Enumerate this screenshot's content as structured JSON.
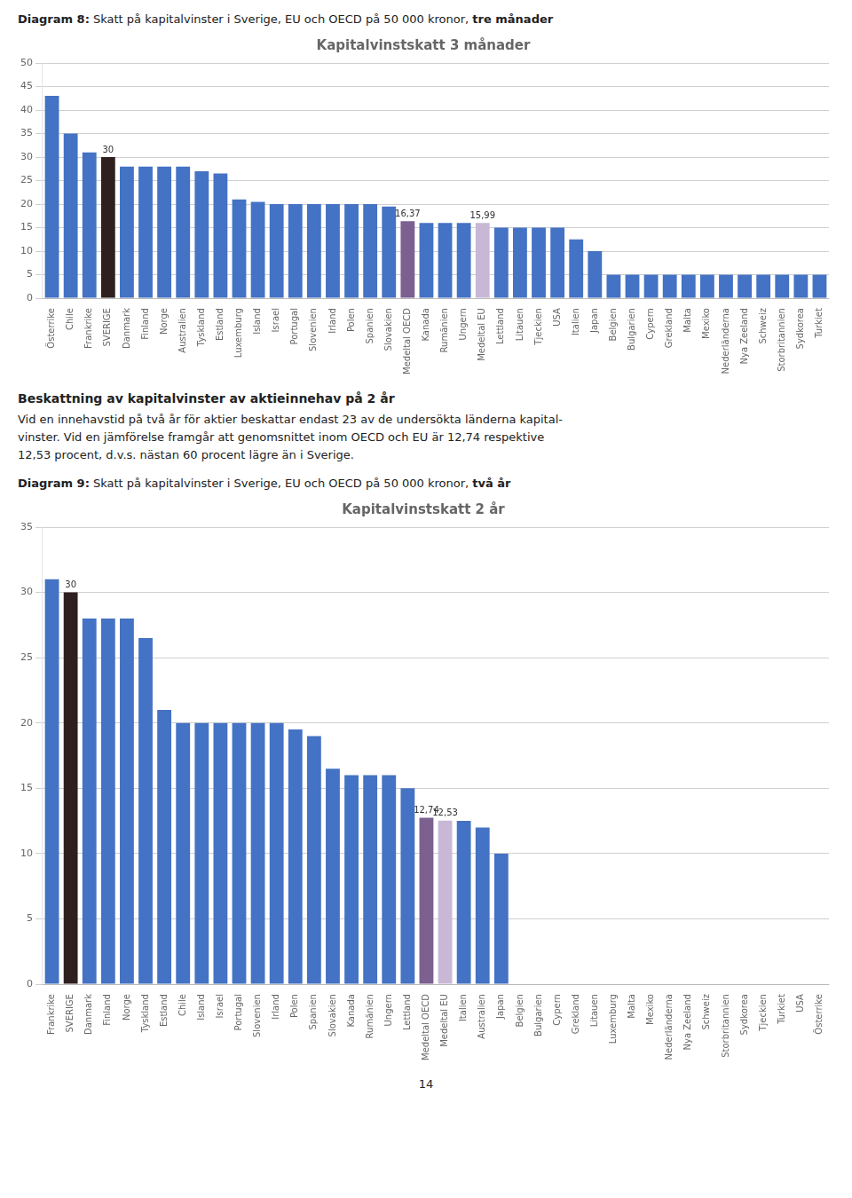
{
  "chart_data": [
    {
      "type": "bar",
      "title": "Kapitalvinstskatt 3 månader",
      "caption": [
        "Diagram 8:",
        " Skatt på kapitalvinster i Sverige, EU och OECD på 50 000 kronor, ",
        "tre månader"
      ],
      "categories": [
        "Österrike",
        "Chile",
        "Frankrike",
        "SVERIGE",
        "Danmark",
        "Finland",
        "Norge",
        "Australien",
        "Tyskland",
        "Estland",
        "Luxemburg",
        "Island",
        "Israel",
        "Portugal",
        "Slovenien",
        "Irland",
        "Polen",
        "Spanien",
        "Slovakien",
        "Medeltal OECD",
        "Kanada",
        "Rumänien",
        "Ungern",
        "Medeltal EU",
        "Lettland",
        "Litauen",
        "Tjeckien",
        "USA",
        "Italien",
        "Japan",
        "Belgien",
        "Bulgarien",
        "Cypern",
        "Grekland",
        "Malta",
        "Mexiko",
        "Nederländerna",
        "Nya Zeeland",
        "Schweiz",
        "Storbritannien",
        "Sydkorea",
        "Turkiet"
      ],
      "values": [
        43,
        35,
        31,
        30,
        28,
        28,
        28,
        28,
        27,
        26.5,
        21,
        20.5,
        20,
        20,
        20,
        20,
        20,
        20,
        19.5,
        16.37,
        16,
        16,
        16,
        15.99,
        15,
        15,
        15,
        15,
        12.5,
        10,
        5,
        5,
        5,
        5,
        5,
        5,
        5,
        5,
        5,
        5,
        5,
        5
      ],
      "value_labels": [
        null,
        null,
        null,
        "30",
        null,
        null,
        null,
        null,
        null,
        null,
        null,
        null,
        null,
        null,
        null,
        null,
        null,
        null,
        null,
        "16,37",
        null,
        null,
        null,
        "15,99",
        null,
        null,
        null,
        null,
        null,
        null,
        null,
        null,
        null,
        null,
        null,
        null,
        null,
        null,
        null,
        null,
        null,
        null
      ],
      "colors": [
        "#4472C4",
        "#4472C4",
        "#4472C4",
        "#2F2020",
        "#4472C4",
        "#4472C4",
        "#4472C4",
        "#4472C4",
        "#4472C4",
        "#4472C4",
        "#4472C4",
        "#4472C4",
        "#4472C4",
        "#4472C4",
        "#4472C4",
        "#4472C4",
        "#4472C4",
        "#4472C4",
        "#4472C4",
        "#7B6090",
        "#4472C4",
        "#4472C4",
        "#4472C4",
        "#C8B8D5",
        "#4472C4",
        "#4472C4",
        "#4472C4",
        "#4472C4",
        "#4472C4",
        "#4472C4",
        "#4472C4",
        "#4472C4",
        "#4472C4",
        "#4472C4",
        "#4472C4",
        "#4472C4",
        "#4472C4",
        "#4472C4",
        "#4472C4",
        "#4472C4",
        "#4472C4",
        "#4472C4"
      ],
      "ylim": [
        0,
        50
      ],
      "yticks": [
        0,
        5,
        10,
        15,
        20,
        25,
        30,
        35,
        40,
        45,
        50
      ],
      "grid": true
    },
    {
      "type": "bar",
      "title": "Kapitalvinstskatt 2 år",
      "caption": [
        "Diagram 9:",
        " Skatt på kapitalvinster i Sverige, EU och OECD på 50 000 kronor, ",
        "två år"
      ],
      "categories": [
        "Frankrike",
        "SVERIGE",
        "Danmark",
        "Finland",
        "Norge",
        "Tyskland",
        "Estland",
        "Chile",
        "Island",
        "Israel",
        "Portugal",
        "Slovenien",
        "Irland",
        "Polen",
        "Spanien",
        "Slovakien",
        "Kanada",
        "Rumänien",
        "Ungern",
        "Lettland",
        "Medeltal OECD",
        "Medeltal EU",
        "Italien",
        "Australien",
        "Japan",
        "Belgien",
        "Bulgarien",
        "Cypern",
        "Grekland",
        "Litauen",
        "Luxemburg",
        "Malta",
        "Mexiko",
        "Nederländerna",
        "Nya Zeeland",
        "Schweiz",
        "Storbritannien",
        "Sydkorea",
        "Tjeckien",
        "Turkiet",
        "USA",
        "Österrike"
      ],
      "values": [
        31,
        30,
        28,
        28,
        28,
        26.5,
        21,
        20,
        20,
        20,
        20,
        20,
        20,
        19.5,
        19,
        16.5,
        16,
        16,
        16,
        15,
        12.74,
        12.53,
        12.5,
        12,
        10,
        0,
        0,
        0,
        0,
        0,
        0,
        0,
        0,
        0,
        0,
        0,
        0,
        0,
        0,
        0,
        0,
        0
      ],
      "value_labels": [
        null,
        "30",
        null,
        null,
        null,
        null,
        null,
        null,
        null,
        null,
        null,
        null,
        null,
        null,
        null,
        null,
        null,
        null,
        null,
        null,
        "12,74",
        "12,53",
        null,
        null,
        null,
        null,
        null,
        null,
        null,
        null,
        null,
        null,
        null,
        null,
        null,
        null,
        null,
        null,
        null,
        null,
        null,
        null
      ],
      "colors": [
        "#4472C4",
        "#2F2020",
        "#4472C4",
        "#4472C4",
        "#4472C4",
        "#4472C4",
        "#4472C4",
        "#4472C4",
        "#4472C4",
        "#4472C4",
        "#4472C4",
        "#4472C4",
        "#4472C4",
        "#4472C4",
        "#4472C4",
        "#4472C4",
        "#4472C4",
        "#4472C4",
        "#4472C4",
        "#4472C4",
        "#7B6090",
        "#C8B8D5",
        "#4472C4",
        "#4472C4",
        "#4472C4",
        "#4472C4",
        "#4472C4",
        "#4472C4",
        "#4472C4",
        "#4472C4",
        "#4472C4",
        "#4472C4",
        "#4472C4",
        "#4472C4",
        "#4472C4",
        "#4472C4",
        "#4472C4",
        "#4472C4",
        "#4472C4",
        "#4472C4",
        "#4472C4",
        "#4472C4"
      ],
      "ylim": [
        0,
        35
      ],
      "yticks": [
        0,
        5,
        10,
        15,
        20,
        25,
        30,
        35
      ],
      "grid": true
    }
  ],
  "section_title": "Beskattning av kapitalvinster av aktieinnehav på 2 år",
  "section_body": "Vid en innehavstid på två år för aktier beskattar endast 23 av de undersökta länderna kapital-\nvinster. Vid en jämförelse framgår att genomsnittet inom OECD och EU är 12,74 respektive\n12,53 procent, d.v.s. nästan 60 procent lägre än i Sverige.",
  "page_number": "14"
}
